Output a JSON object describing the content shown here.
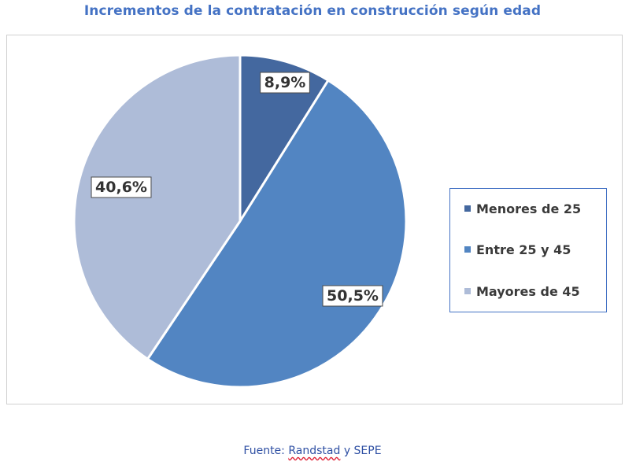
{
  "chart_data": {
    "type": "pie",
    "title": "Incrementos de la contratación en construcción según edad",
    "categories": [
      "Menores de 25",
      "Entre 25 y 45",
      "Mayores de 45"
    ],
    "values": [
      8.9,
      50.5,
      40.6
    ],
    "labels": [
      "8,9%",
      "50,5%",
      "40,6%"
    ],
    "colors": [
      "#44689f",
      "#5285c2",
      "#aebcd8"
    ],
    "legend_position": "right",
    "start_angle": "12 o'clock, clockwise"
  },
  "footer": {
    "source_prefix": "Fuente:",
    "source_name": "Randstad",
    "source_suffix": "y SEPE"
  }
}
